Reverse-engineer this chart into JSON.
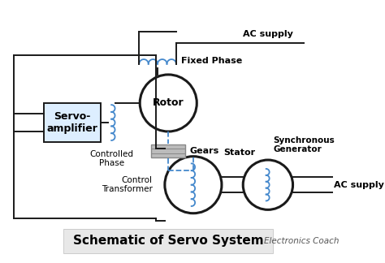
{
  "title": "Schematic of Servo System",
  "watermark": "Electronics Coach",
  "bg_color": "#ffffff",
  "line_color": "#1a1a1a",
  "coil_color": "#4488cc",
  "box_color": "#ddeeff",
  "gear_color": "#bbbbbb",
  "title_fontsize": 10,
  "label_fontsize": 8,
  "small_fontsize": 7,
  "xlim": [
    0,
    10
  ],
  "ylim": [
    0,
    7
  ]
}
